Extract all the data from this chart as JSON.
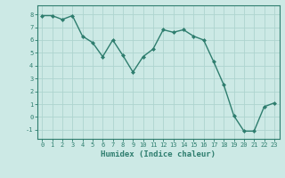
{
  "x": [
    0,
    1,
    2,
    3,
    4,
    5,
    6,
    7,
    8,
    9,
    10,
    11,
    12,
    13,
    14,
    15,
    16,
    17,
    18,
    19,
    20,
    21,
    22,
    23
  ],
  "y": [
    7.9,
    7.9,
    7.6,
    7.9,
    6.3,
    5.8,
    4.7,
    6.0,
    4.8,
    3.5,
    4.7,
    5.3,
    6.8,
    6.6,
    6.8,
    6.3,
    6.0,
    4.3,
    2.5,
    0.1,
    -1.1,
    -1.1,
    0.8,
    1.1
  ],
  "line_color": "#2e7d6e",
  "marker": "D",
  "marker_size": 2,
  "background_color": "#cce9e5",
  "grid_color": "#aed4cf",
  "xlabel": "Humidex (Indice chaleur)",
  "xlim": [
    -0.5,
    23.5
  ],
  "ylim": [
    -1.7,
    8.7
  ],
  "yticks": [
    -1,
    0,
    1,
    2,
    3,
    4,
    5,
    6,
    7,
    8
  ],
  "xticks": [
    0,
    1,
    2,
    3,
    4,
    5,
    6,
    7,
    8,
    9,
    10,
    11,
    12,
    13,
    14,
    15,
    16,
    17,
    18,
    19,
    20,
    21,
    22,
    23
  ],
  "tick_color": "#2e7d6e",
  "xlabel_fontsize": 6.5,
  "tick_fontsize": 5,
  "linewidth": 1.0
}
